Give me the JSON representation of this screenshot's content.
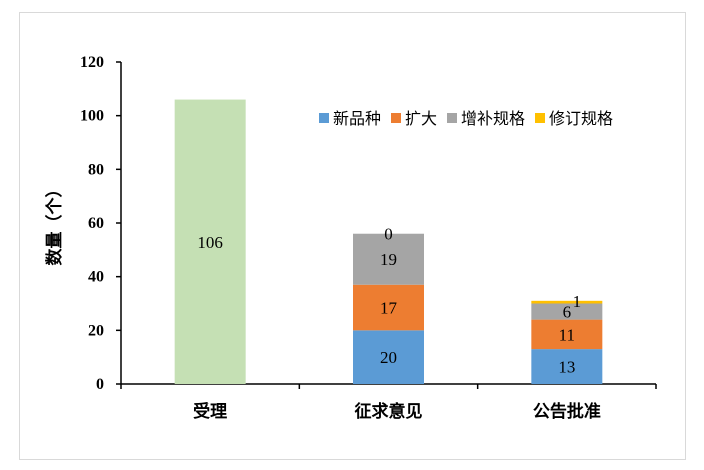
{
  "chart_data": {
    "type": "bar",
    "stacked": true,
    "categories": [
      "受理",
      "征求意见",
      "公告批准"
    ],
    "total_series": {
      "values": [
        106,
        null,
        null
      ],
      "color": "#c5e0b4"
    },
    "series": [
      {
        "name": "新品种",
        "values": [
          null,
          20,
          13
        ],
        "color": "#5b9bd5"
      },
      {
        "name": "扩大",
        "values": [
          null,
          17,
          11
        ],
        "color": "#ed7d31"
      },
      {
        "name": "增补规格",
        "values": [
          null,
          19,
          6
        ],
        "color": "#a5a5a5"
      },
      {
        "name": "修订规格",
        "values": [
          null,
          0,
          1
        ],
        "color": "#ffc000"
      }
    ],
    "ylabel": "数量（个）",
    "ylim": [
      0,
      120
    ],
    "yticks": [
      0,
      20,
      40,
      60,
      80,
      100,
      120
    ],
    "grid": false,
    "legend_position": "top-right"
  }
}
